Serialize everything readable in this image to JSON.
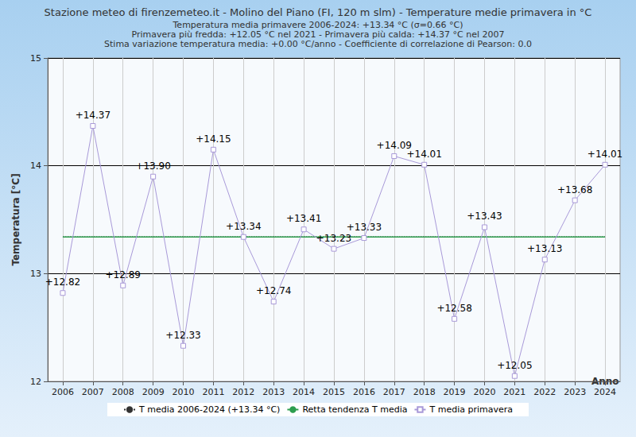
{
  "chart_data": {
    "type": "line",
    "title": "Stazione meteo di firenzemeteo.it - Molino del Piano (FI, 120 m slm) - Temperature medie primavera in °C",
    "subtitle": [
      "Temperatura media primavere 2006-2024: +13.34 °C (σ=0.66 °C)",
      "Primavera più fredda: +12.05 °C nel 2021 - Primavera più calda: +14.37 °C nel 2007",
      "Stima variazione temperatura media: +0.00 °C/anno - Coefficiente di correlazione di Pearson: 0.0"
    ],
    "x_label": "Anno",
    "y_label": "Temperatura [°C]",
    "categories": [
      "2006",
      "2007",
      "2008",
      "2009",
      "2010",
      "2011",
      "2012",
      "2013",
      "2014",
      "2015",
      "2016",
      "2017",
      "2018",
      "2019",
      "2020",
      "2021",
      "2022",
      "2023",
      "2024"
    ],
    "series": [
      {
        "name": "T media 2006-2024 (+13.34 °C)",
        "color": "#333333",
        "line_style": "dotted",
        "marker": "none",
        "values": [
          13.34,
          13.34,
          13.34,
          13.34,
          13.34,
          13.34,
          13.34,
          13.34,
          13.34,
          13.34,
          13.34,
          13.34,
          13.34,
          13.34,
          13.34,
          13.34,
          13.34,
          13.34,
          13.34
        ]
      },
      {
        "name": "Retta tendenza T media",
        "color": "#2e9e4f",
        "line_style": "solid",
        "marker": "none",
        "values": [
          13.34,
          13.34,
          13.34,
          13.34,
          13.34,
          13.34,
          13.34,
          13.34,
          13.34,
          13.34,
          13.34,
          13.34,
          13.34,
          13.34,
          13.34,
          13.34,
          13.34,
          13.34,
          13.34
        ]
      },
      {
        "name": "T media primavera",
        "color": "#a899d8",
        "line_style": "solid",
        "marker": "square",
        "data_labels": true,
        "values": [
          12.82,
          14.37,
          12.89,
          13.9,
          12.33,
          14.15,
          13.34,
          12.74,
          13.41,
          13.23,
          13.33,
          14.09,
          14.01,
          12.58,
          13.43,
          12.05,
          13.13,
          13.68,
          14.01
        ],
        "value_labels": [
          "+12.82",
          "+14.37",
          "+12.89",
          "+13.90",
          "+12.33",
          "+14.15",
          "+13.34",
          "+12.74",
          "+13.41",
          "+13.23",
          "+13.33",
          "+14.09",
          "+14.01",
          "+12.58",
          "+13.43",
          "+12.05",
          "+13.13",
          "+13.68",
          "+14.01"
        ]
      }
    ],
    "ylim": [
      12,
      15
    ],
    "yticks": [
      12,
      13,
      14,
      15
    ],
    "grid": true,
    "legend": "bottom"
  }
}
